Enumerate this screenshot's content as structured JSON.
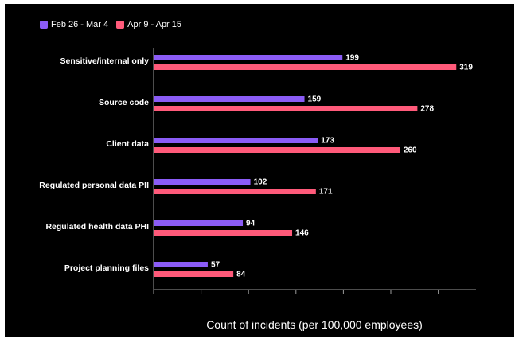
{
  "chart_data": {
    "type": "bar",
    "orientation": "horizontal",
    "categories": [
      "Sensitive/internal only",
      "Source code",
      "Client data",
      "Regulated personal data PII",
      "Regulated health data PHI",
      "Project planning files"
    ],
    "series": [
      {
        "name": "Feb 26 - Mar 4",
        "color": "#8b5cf6",
        "values": [
          199,
          159,
          173,
          102,
          94,
          57
        ]
      },
      {
        "name": "Apr 9 - Apr 15",
        "color": "#ff5a7a",
        "values": [
          319,
          278,
          260,
          171,
          146,
          84
        ]
      }
    ],
    "xlabel": "Count of incidents (per 100,000 employees)",
    "xlim": [
      0,
      340
    ],
    "grid": false,
    "legend_position": "top-left",
    "background": "#000000"
  }
}
